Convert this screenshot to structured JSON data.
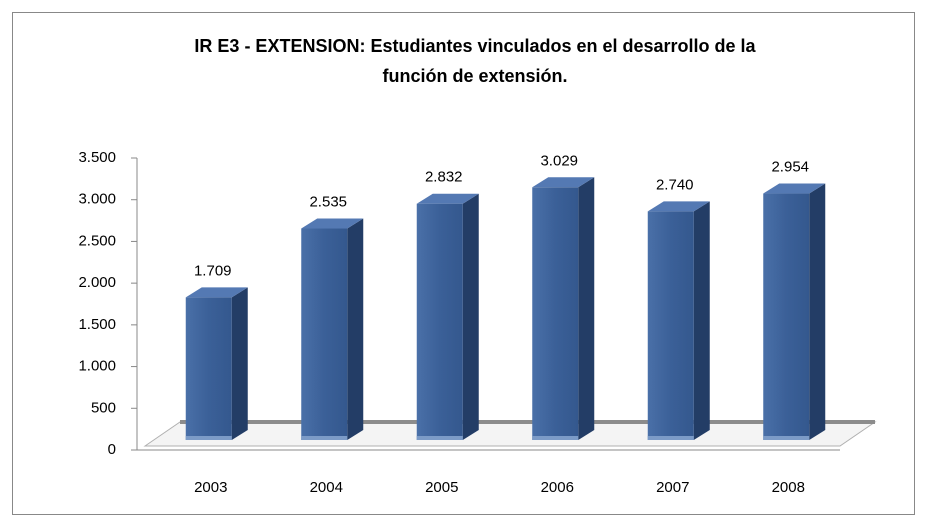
{
  "chart_data": {
    "type": "bar",
    "title": [
      "IR E3 - EXTENSION: Estudiantes vinculados en el desarrollo de la",
      "función de extensión."
    ],
    "categories": [
      "2003",
      "2004",
      "2005",
      "2006",
      "2007",
      "2008"
    ],
    "values": [
      1709,
      2535,
      2832,
      3029,
      2740,
      2954
    ],
    "value_labels": [
      "1.709",
      "2.535",
      "2.832",
      "3.029",
      "2.740",
      "2.954"
    ],
    "color": "#3b6098",
    "ylim": [
      0,
      3500
    ],
    "yticks": [
      0,
      500,
      {
        "value": 1000,
        "label": "1.000"
      },
      {
        "value": 1500,
        "label": "1.500"
      },
      {
        "value": 2000,
        "label": "2.000"
      },
      {
        "value": 2500,
        "label": "2.500"
      },
      {
        "value": 3000,
        "label": "3.000"
      },
      {
        "value": 3500,
        "label": "3.500"
      }
    ],
    "grid": false
  }
}
